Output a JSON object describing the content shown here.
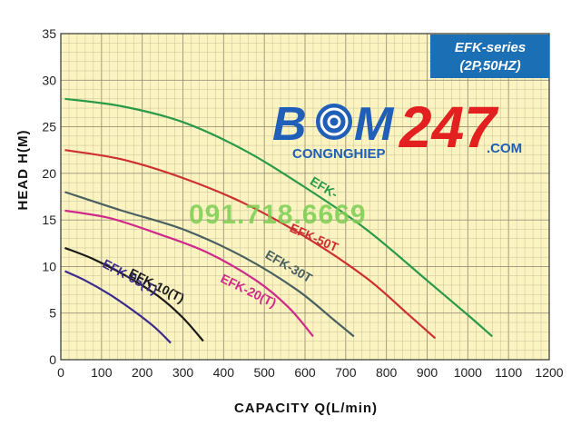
{
  "chart_data": {
    "type": "line",
    "title": "",
    "xlabel": "CAPACITY  Q(L/min)",
    "ylabel": "HEAD  H(M)",
    "xlim": [
      0,
      1200
    ],
    "ylim": [
      0,
      35
    ],
    "xticks": [
      "0",
      "100",
      "200",
      "300",
      "400",
      "500",
      "600",
      "700",
      "800",
      "900",
      "1000",
      "1100",
      "1200"
    ],
    "yticks": [
      "0",
      "5",
      "10",
      "15",
      "20",
      "25",
      "30",
      "35"
    ],
    "grid": true,
    "legend": "none",
    "series": [
      {
        "name": "EFK-05(T)",
        "color": "#3a2a8c",
        "x": [
          10,
          60,
          120,
          180,
          230,
          270
        ],
        "y": [
          9.5,
          8.5,
          7,
          5.2,
          3.5,
          1.8
        ]
      },
      {
        "name": "EFK-10(T)",
        "color": "#1a1a1a",
        "x": [
          10,
          80,
          160,
          240,
          300,
          350
        ],
        "y": [
          12,
          10.8,
          9,
          6.8,
          4.5,
          2
        ]
      },
      {
        "name": "EFK-20(T)",
        "color": "#d0298c",
        "x": [
          10,
          120,
          240,
          360,
          480,
          560,
          620
        ],
        "y": [
          16,
          15.2,
          13.5,
          11.5,
          8.5,
          5.6,
          2.5
        ]
      },
      {
        "name": "EFK-30T",
        "color": "#4a6060",
        "x": [
          10,
          150,
          300,
          450,
          580,
          670,
          720
        ],
        "y": [
          18,
          16,
          14,
          11,
          7.5,
          4.3,
          2.5
        ]
      },
      {
        "name": "EFK-50T",
        "color": "#cc3030",
        "x": [
          10,
          150,
          300,
          450,
          600,
          750,
          850,
          920
        ],
        "y": [
          22.5,
          21.5,
          19.5,
          16.8,
          13.2,
          8.8,
          5,
          2.3
        ]
      },
      {
        "name": "EFK-",
        "color": "#2a9a4a",
        "x": [
          10,
          150,
          300,
          450,
          600,
          750,
          900,
          1000,
          1060
        ],
        "y": [
          28,
          27.2,
          25.5,
          22.5,
          18.5,
          14,
          8.5,
          4.8,
          2.5
        ]
      }
    ]
  },
  "infobox": {
    "line1": "EFK-series",
    "line2": "(2P,50HZ)"
  },
  "watermark": {
    "brand_left": "B",
    "brand_mid": "M",
    "brand_num": "247",
    "sub": "CONGNGHIEP",
    "domain": ".COM",
    "phone": "091.718.6669"
  },
  "colors": {
    "plot_bg": "#fbf4c0",
    "grid": "#c9c09a",
    "infobox_bg": "#1a6fb5",
    "watermark_blue": "#1f5fb8",
    "watermark_red": "#e22020"
  }
}
